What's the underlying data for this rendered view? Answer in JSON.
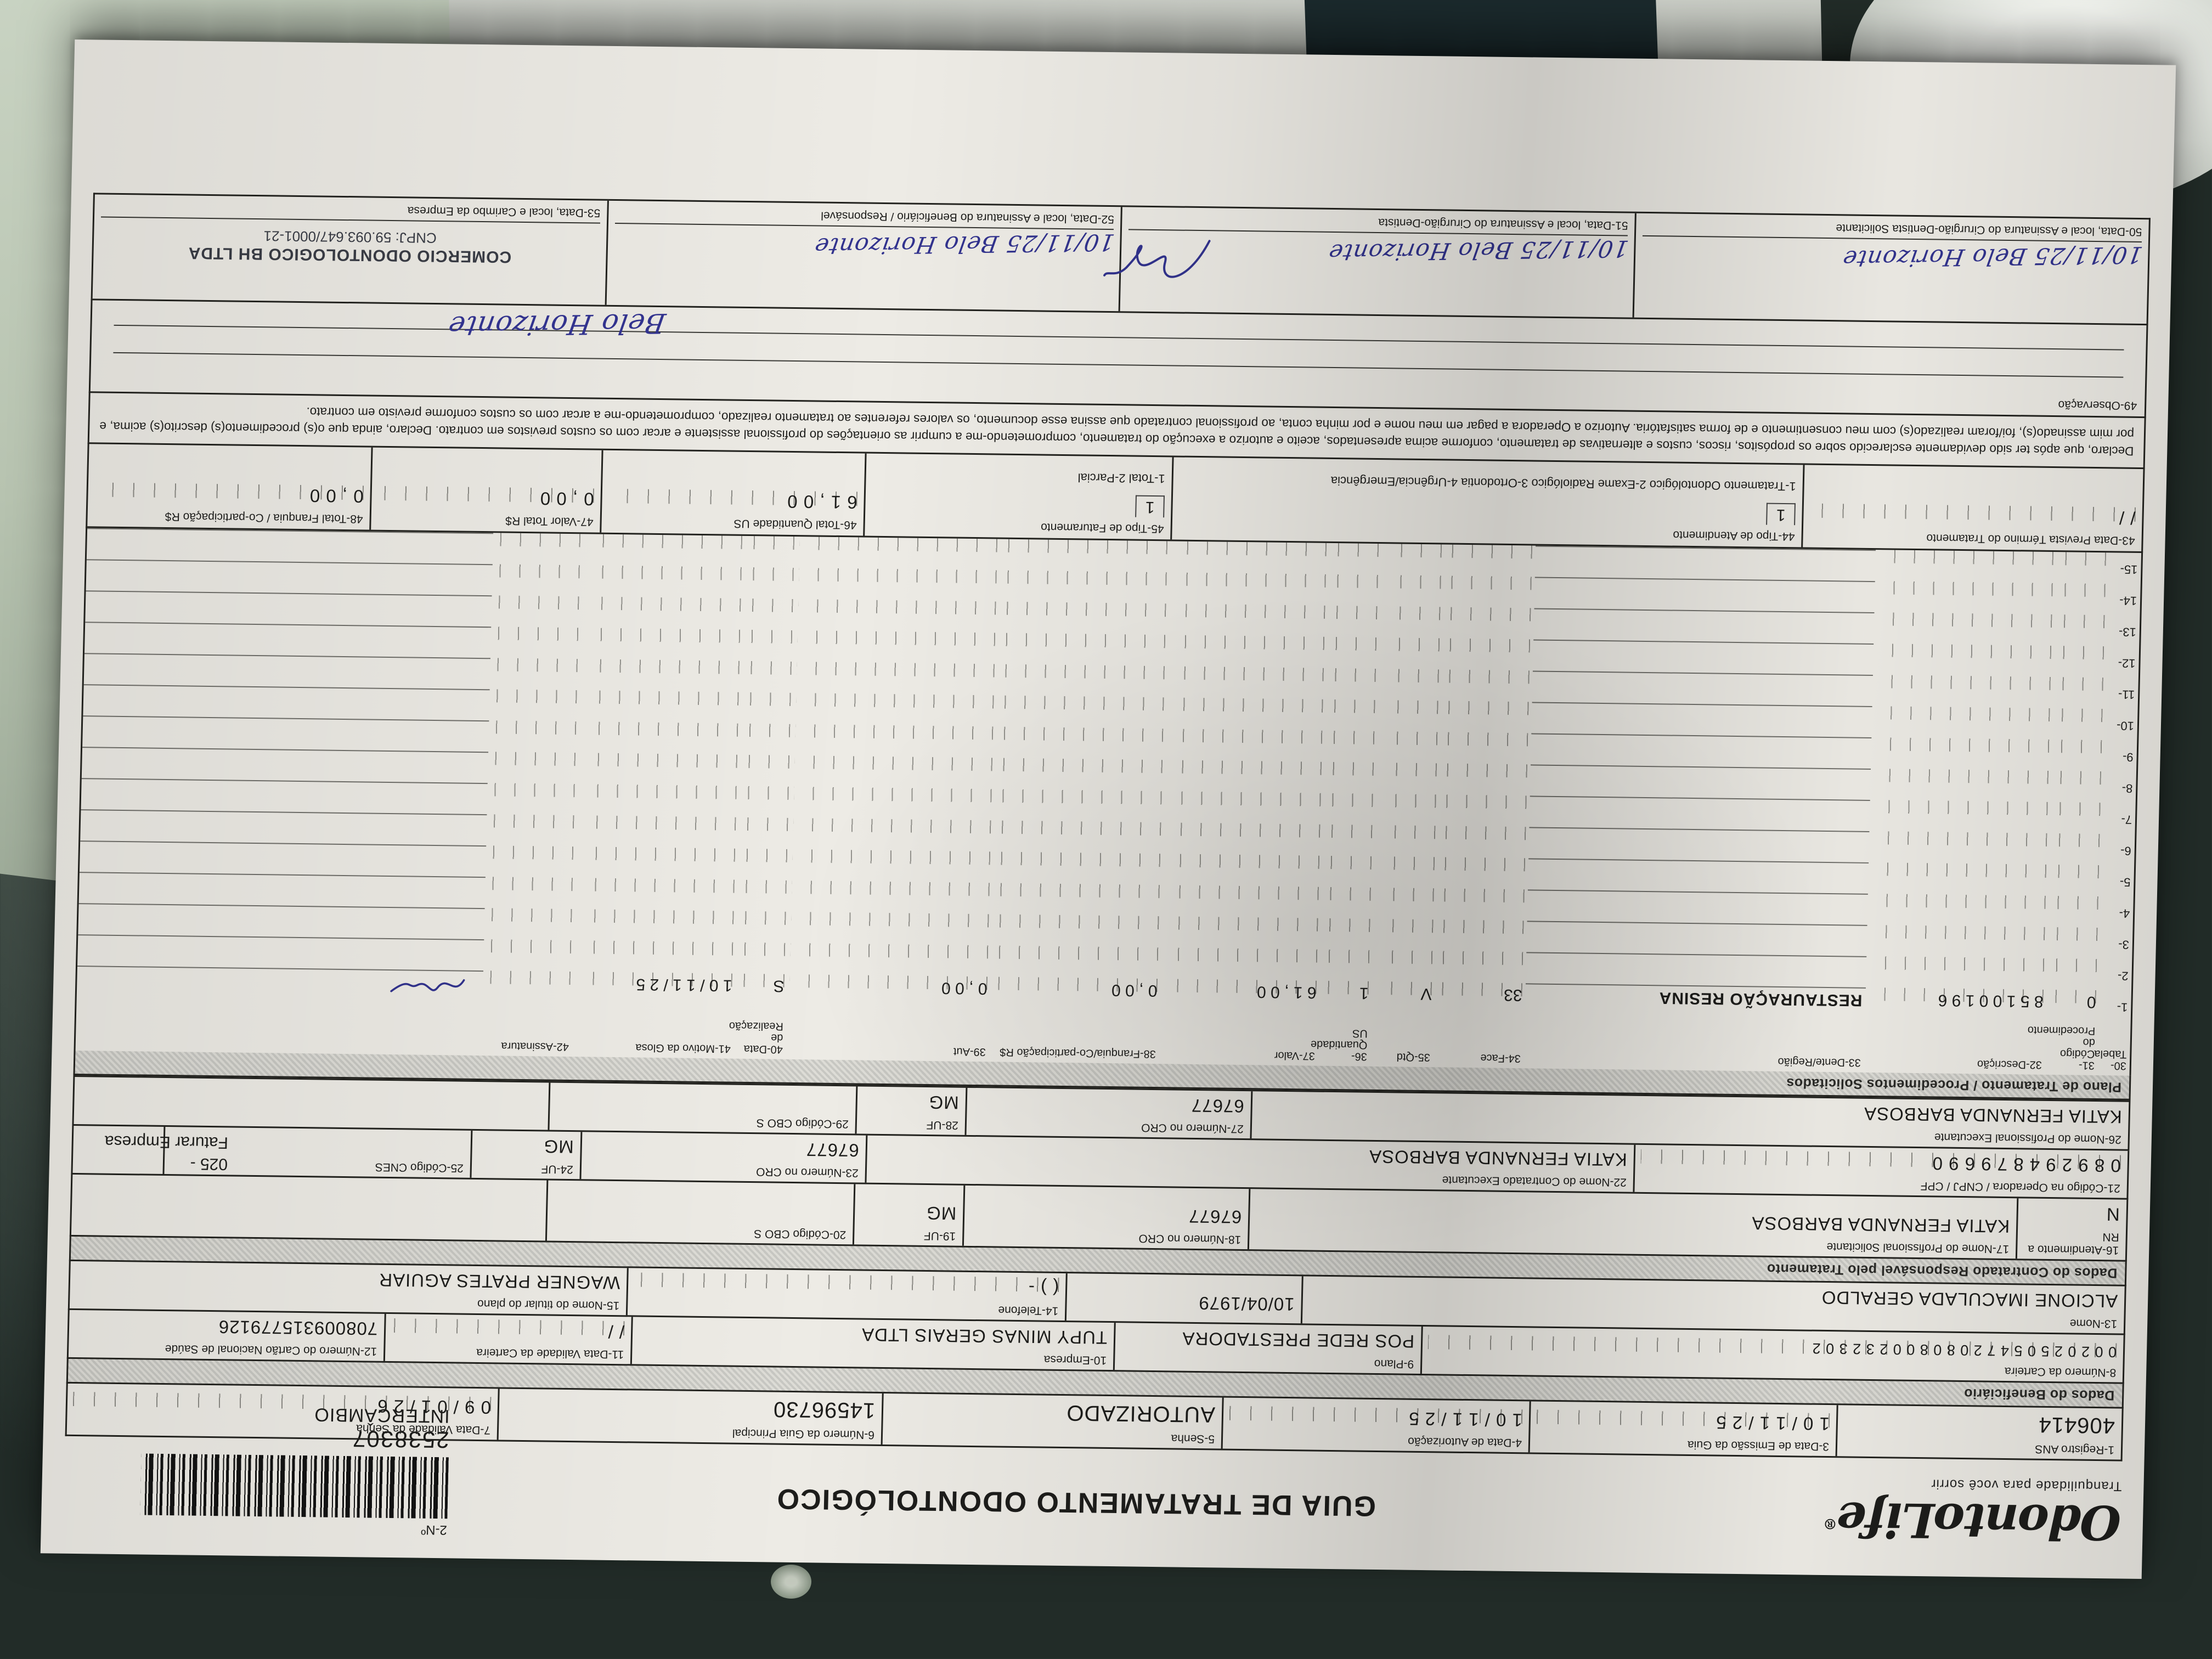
{
  "colors": {
    "paper": "#edebe5",
    "ink": "#32338e",
    "line": "#23231f"
  },
  "logo": {
    "text": "OdontoLife",
    "reg": "®",
    "tagline": "Tranquilidade para você sorrir"
  },
  "title": "GUIA DE TRATAMENTO ODONTOLÓGICO",
  "guide_number": {
    "label": "2-Nº",
    "value": "2538307",
    "note": "INTERCÂMBIO"
  },
  "row_a": {
    "registro_ans": {
      "label": "1-Registro ANS",
      "value": "406414"
    },
    "emissao": {
      "label": "3-Data de Emissão da Guia",
      "value": "1 0 / 1 1 / 2 5"
    },
    "autorizacao": {
      "label": "4-Data de Autorização",
      "value": "1 0 / 1 1 / 2 5"
    },
    "senha": {
      "label": "5-Senha",
      "value": "AUTORIZADO"
    },
    "guia_principal": {
      "label": "6-Número da Guia Principal",
      "value": "14596730"
    },
    "validade_senha": {
      "label": "7-Data Validade da Senha",
      "value": "0 9 / 0 1 / 2 6"
    }
  },
  "sections": {
    "beneficiario": "Dados do Beneficiário",
    "contratado": "Dados do Contratado Responsável pelo Tratamento",
    "plano": "Plano de Tratamento / Procedimentos Solicitados"
  },
  "beneficiario": {
    "carteira": {
      "label": "8-Número da Carteira",
      "value": "0 0 2 0 2 5 0 5 4 7 2 0 8 0 8 0 0 2 3 2 3 0 2"
    },
    "plano": {
      "label": "9-Plano",
      "value": "POS REDE PRESTADORA"
    },
    "empresa": {
      "label": "10-Empresa",
      "value": "TUPY MINAS GERAIS LTDA"
    },
    "validade_carteira": {
      "label": "11-Data Validade da Carteira",
      "value": "/      /"
    },
    "cns": {
      "label": "12-Número do Cartão Nacional de Saúde",
      "value": "708009315779126"
    },
    "nome": {
      "label": "13-Nome",
      "value": "ALCIONE IMACULADA GERALDO"
    },
    "nascimento": {
      "value": "10/04/1979"
    },
    "telefone": {
      "label": "14-Telefone",
      "value": "(      )            -"
    },
    "titular": {
      "label": "15-Nome do titular do plano",
      "value": "WAGNER PRATES AGUIAR"
    }
  },
  "contratado": {
    "rn": {
      "label": "16-Atendimento a RN",
      "value": "N"
    },
    "solicitante": {
      "label": "17-Nome do Profissional Solicitante",
      "value": "KATIA FERNANDA BARBOSA"
    },
    "cro18": {
      "label": "18-Número no CRO",
      "value": "67677"
    },
    "uf19": {
      "label": "19-UF",
      "value": "MG"
    },
    "cbo20": {
      "label": "20-Código CBO S",
      "value": ""
    },
    "faturar_line1": "025 -",
    "faturar_line2": "Faturar Empresa",
    "codigo_operadora": {
      "label": "21-Código na Operadora / CNPJ / CPF",
      "value": "0 8 9 2 9 4 8 7 9 6 9 0"
    },
    "executante_contratado": {
      "label": "22-Nome do Contratado Executante",
      "value": "KATIA FERNANDA BARBOSA"
    },
    "cro23": {
      "label": "23-Número no CRO",
      "value": "67677"
    },
    "uf24": {
      "label": "24-UF",
      "value": "MG"
    },
    "cnes25": {
      "label": "25-Código CNES",
      "value": ""
    },
    "executante_profissional": {
      "label": "26-Nome do Profissional Executante",
      "value": "KATIA FERNANDA BARBOSA"
    },
    "cro27": {
      "label": "27-Número no CRO",
      "value": "67677"
    },
    "uf28": {
      "label": "28-UF",
      "value": "MG"
    },
    "cbo29": {
      "label": "29-Código CBO S",
      "value": ""
    }
  },
  "table": {
    "columns": [
      "30-Tabela",
      "31-Código do Procedimento",
      "32-Descrição",
      "33-Dente/Região",
      "34-Face",
      "35-Qtd",
      "36-Quantidade US",
      "37-Valor",
      "38-Franquia/Co-participação R$",
      "39-Aut",
      "40-Data de Realização",
      "41-Motivo da Glosa",
      "42-Assinatura"
    ],
    "rows": [
      {
        "n": "1-",
        "tabela": "0",
        "codigo": "8 5 1 0 0 1 9 6",
        "descricao": "RESTAURAÇÃO RESINA",
        "dente": "33",
        "face": "V",
        "qtd": "1",
        "us": "6 1 , 0 0",
        "valor": "0 , 0 0",
        "franquia": "0 , 0 0",
        "aut": "S",
        "data": "1 0 / 1 1 / 2 5",
        "motivo": ""
      },
      {
        "n": "2-"
      },
      {
        "n": "3-"
      },
      {
        "n": "4-"
      },
      {
        "n": "5-"
      },
      {
        "n": "6-"
      },
      {
        "n": "7-"
      },
      {
        "n": "8-"
      },
      {
        "n": "9-"
      },
      {
        "n": "10-"
      },
      {
        "n": "11-"
      },
      {
        "n": "12-"
      },
      {
        "n": "13-"
      },
      {
        "n": "14-"
      },
      {
        "n": "15-"
      }
    ]
  },
  "totals": {
    "termino": {
      "label": "43-Data Prevista Término do Tratamento",
      "value": "/      /"
    },
    "tipo_atendimento": {
      "label": "44-Tipo de Atendimento",
      "options": "1-Tratamento Odontológico   2-Exame Radiológico   3-Ortodontia   4-Urgência/Emergência",
      "value": "1"
    },
    "tipo_faturamento": {
      "label": "45-Tipo de Faturamento",
      "options": "1-Total   2-Parcial",
      "value": "1"
    },
    "total_us": {
      "label": "46-Total Quantidade US",
      "value": "6 1 , 0 0"
    },
    "valor_total": {
      "label": "47-Valor Total R$",
      "value": "0 , 0 0"
    },
    "total_franquia": {
      "label": "48-Total Franquia / Co-participação R$",
      "value": "0 , 0 0"
    }
  },
  "declaration": "Declaro, que após ter sido devidamente esclarecido sobre os propósitos, riscos, custos e alternativas de tratamento, conforme acima apresentados, aceito e autorizo a execução do tratamento, comprometendo-me a cumprir as orientações do profissional assistente e arcar com os custos previstos em contrato. Declaro, ainda que o(s) procedimento(s) descrito(s) acima, e por mim assinado(s), foi/foram realizado(s) com meu consentimento e de forma satisfatória. Autorizo a Operadora a pagar em meu nome e por minha conta, ao profissional contratado que assina esse documento, os valores referentes ao tratamento realizado, comprometendo-me a arcar com os custos conforme previsto em contrato.",
  "observacao_label": "49-Observação",
  "signatures": {
    "s50": {
      "label": "50-Data, local e Assinatura do Cirurgião-Dentista Solicitante",
      "handwriting": "10/11/25   Belo Horizonte"
    },
    "s51": {
      "label": "51-Data, local e Assinatura do Cirurgião-Dentista",
      "handwriting": "10/11/25   Belo Horizonte"
    },
    "s52": {
      "label": "52-Data, local e Assinatura do Beneficiário / Responsável",
      "handwriting": "10/11/25   Belo Horizonte"
    },
    "s53": {
      "label": "53-Data, local e Carimbo da Empresa",
      "stamp_line1": "COMERCIO ODONTOLOGICO BH LTDA",
      "stamp_line2": "CNPJ: 59.093.647/0001-21"
    },
    "floating": "Belo Horizonte"
  }
}
